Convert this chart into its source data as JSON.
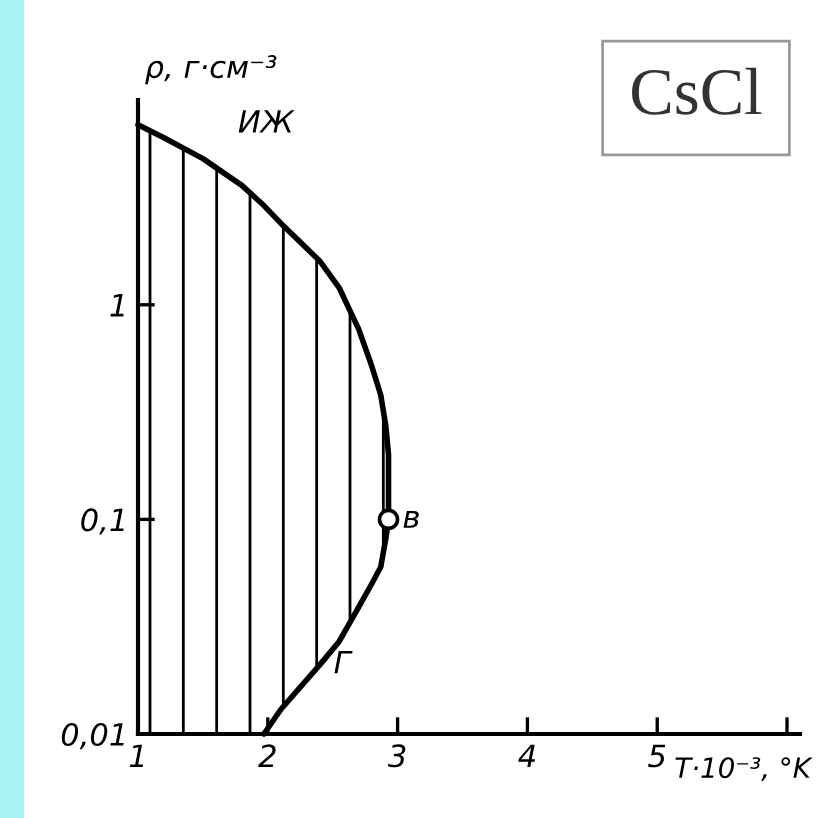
{
  "chart_data": {
    "type": "line",
    "title": "CsCl",
    "xlabel": "T·10⁻³, °K",
    "ylabel": "ρ, г·см⁻³",
    "xlim": [
      1,
      6.1
    ],
    "xticks": [
      1,
      2,
      3,
      4,
      5,
      {
        "value": 6,
        "label": null
      }
    ],
    "ylim": [
      0.01,
      9
    ],
    "yticks": [
      {
        "value": 0.01,
        "label": "0,01"
      },
      {
        "value": 0.1,
        "label": "0,1"
      },
      1
    ],
    "log": "y",
    "grid": false,
    "series": [
      {
        "color": "#000000",
        "x": [
          1.0,
          1.2,
          1.5,
          1.8,
          1.97,
          2.1,
          2.4,
          2.55,
          2.7,
          2.8,
          2.87,
          2.91,
          2.93,
          2.93
        ],
        "values": [
          6.9,
          6.0,
          4.8,
          3.6,
          2.9,
          2.4,
          1.6,
          1.2,
          0.77,
          0.52,
          0.38,
          0.27,
          0.2,
          0.1
        ],
        "upper": [
          6.9,
          6.0,
          4.8,
          3.6,
          2.9,
          2.4,
          1.6,
          1.2,
          0.77,
          0.52,
          0.38,
          0.27,
          0.2,
          0.1
        ],
        "lower": [
          0.01,
          0.01,
          0.01,
          0.01,
          0.01,
          0.013,
          0.021,
          0.027,
          0.039,
          0.05,
          0.06,
          0.082,
          0.1,
          0.1
        ]
      },
      {
        "color": "#000000",
        "x": [
          1.97,
          2.1,
          2.4,
          2.55,
          2.7,
          2.8,
          2.87,
          2.91,
          2.93
        ],
        "values": [
          0.01,
          0.013,
          0.021,
          0.027,
          0.039,
          0.05,
          0.06,
          0.082,
          0.1
        ]
      },
      {
        "type": "scatter",
        "color": "#000000",
        "marker": "circle",
        "x": [
          2.93
        ],
        "values": [
          0.1
        ]
      }
    ],
    "annotations": [
      "ИЖ",
      {
        "text": "в",
        "x": 2.93,
        "y": 0.1
      },
      {
        "text": "Г",
        "x": 2.4,
        "y": 0.021
      }
    ]
  }
}
